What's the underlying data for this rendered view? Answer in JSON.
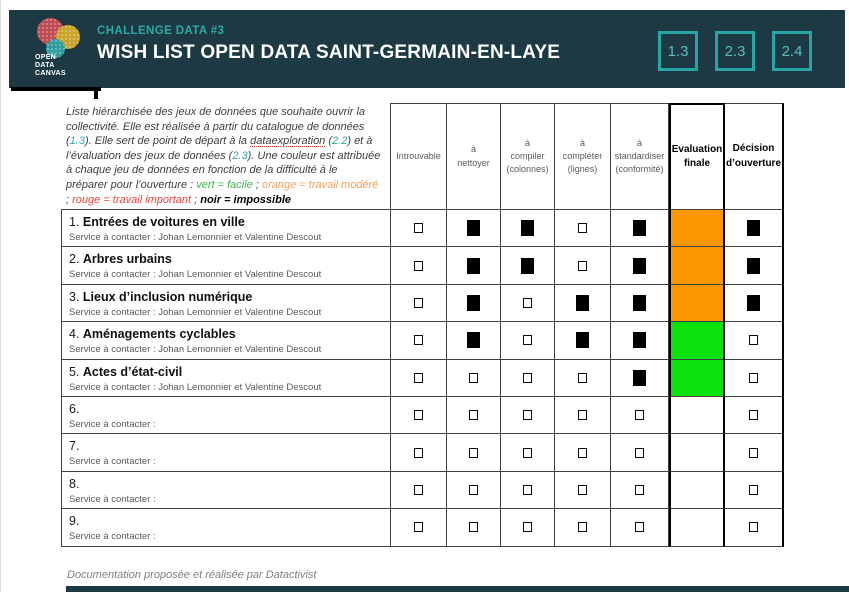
{
  "header": {
    "kicker": "CHALLENGE DATA #3",
    "title": "WISH LIST OPEN DATA SAINT-GERMAIN-EN-LAYE",
    "logo_lines": [
      "OPEN",
      "DATA",
      "CANVAS"
    ],
    "ref_boxes": [
      "1.3",
      "2.3",
      "2.4"
    ]
  },
  "intro": {
    "segments": [
      {
        "t": "Liste hiérarchisée des jeux de données que souhaite ouvrir la collectivité. Elle est réalisée à partir du catalogue de données (",
        "s": "plain"
      },
      {
        "t": "1.3",
        "s": "ref"
      },
      {
        "t": "). Elle sert de point de départ à la ",
        "s": "plain"
      },
      {
        "t": "dataexploration",
        "s": "misspell"
      },
      {
        "t": " (",
        "s": "plain"
      },
      {
        "t": "2.2",
        "s": "ref"
      },
      {
        "t": ") et à l’évaluation des jeux de données (",
        "s": "plain"
      },
      {
        "t": "2.3",
        "s": "ref"
      },
      {
        "t": "). Une couleur est attribuée à chaque jeu de données en fonction de la difficulté à le préparer pour l’ouverture : ",
        "s": "plain"
      },
      {
        "t": "vert = facile",
        "s": "green"
      },
      {
        "t": " ; ",
        "s": "plain"
      },
      {
        "t": "orange = travail modéré",
        "s": "orange"
      },
      {
        "t": " ; ",
        "s": "plain"
      },
      {
        "t": "rouge = travail important",
        "s": "red"
      },
      {
        "t": " ; ",
        "s": "plain"
      },
      {
        "t": "noir = impossible",
        "s": "black"
      }
    ]
  },
  "table": {
    "columns": [
      {
        "key": "introuvable",
        "label": "Introuvable",
        "strong": false
      },
      {
        "key": "nettoyer",
        "label": "à\nnettoyer",
        "strong": false
      },
      {
        "key": "compiler",
        "label": "à\ncompiler\n(colonnes)",
        "strong": false
      },
      {
        "key": "completer",
        "label": "à\ncompléter\n(lignes)",
        "strong": false
      },
      {
        "key": "standardiser",
        "label": "à\nstandardiser\n(conformité)",
        "strong": false
      },
      {
        "key": "evaluation",
        "label": "Evaluation\nfinale",
        "strong": true
      },
      {
        "key": "decision",
        "label": "Décision\nd’ouverture",
        "strong": true
      }
    ],
    "rows": [
      {
        "num": "1.",
        "name": "Entrées de voitures en ville",
        "service": "Service à contacter : Johan Lemonnier et Valentine Descout",
        "checks": [
          0,
          1,
          1,
          0,
          1
        ],
        "evaluation": "orange",
        "decision": 1
      },
      {
        "num": "2.",
        "name": "Arbres urbains",
        "service": "Service à contacter : Johan Lemonnier et Valentine Descout",
        "checks": [
          0,
          1,
          1,
          0,
          1
        ],
        "evaluation": "orange",
        "decision": 1
      },
      {
        "num": "3.",
        "name": "Lieux d’inclusion numérique",
        "service": "Service à contacter : Johan Lemonnier et Valentine Descout",
        "checks": [
          0,
          1,
          0,
          1,
          1
        ],
        "evaluation": "orange",
        "decision": 1
      },
      {
        "num": "4.",
        "name": "Aménagements cyclables",
        "service": "Service à contacter : Johan Lemonnier et Valentine Descout",
        "checks": [
          0,
          1,
          0,
          1,
          1
        ],
        "evaluation": "green",
        "decision": 0
      },
      {
        "num": "5.",
        "name": "Actes d’état-civil",
        "service": "Service à contacter : Johan Lemonnier et Valentine Descout",
        "checks": [
          0,
          0,
          0,
          0,
          1
        ],
        "evaluation": "green",
        "decision": 0
      },
      {
        "num": "6.",
        "name": "",
        "service": "Service à contacter :",
        "checks": [
          0,
          0,
          0,
          0,
          0
        ],
        "evaluation": "none",
        "decision": 0
      },
      {
        "num": "7.",
        "name": "",
        "service": "Service à contacter :",
        "checks": [
          0,
          0,
          0,
          0,
          0
        ],
        "evaluation": "none",
        "decision": 0
      },
      {
        "num": "8.",
        "name": "",
        "service": "Service à contacter :",
        "checks": [
          0,
          0,
          0,
          0,
          0
        ],
        "evaluation": "none",
        "decision": 0
      },
      {
        "num": "9.",
        "name": "",
        "service": "Service à contacter :",
        "checks": [
          0,
          0,
          0,
          0,
          0
        ],
        "evaluation": "none",
        "decision": 0
      }
    ]
  },
  "footer": {
    "credit": "Documentation proposée et réalisée par Datactivist"
  },
  "colors": {
    "header_bg": "#1D3A44",
    "accent_teal": "#2FA9A5",
    "eval_orange": "#FA9701",
    "eval_green": "#0BE20B",
    "text_gray": "#595959",
    "legend_green": "#3DB54A",
    "legend_orange": "#F2A057",
    "legend_red": "#EF3E36"
  }
}
